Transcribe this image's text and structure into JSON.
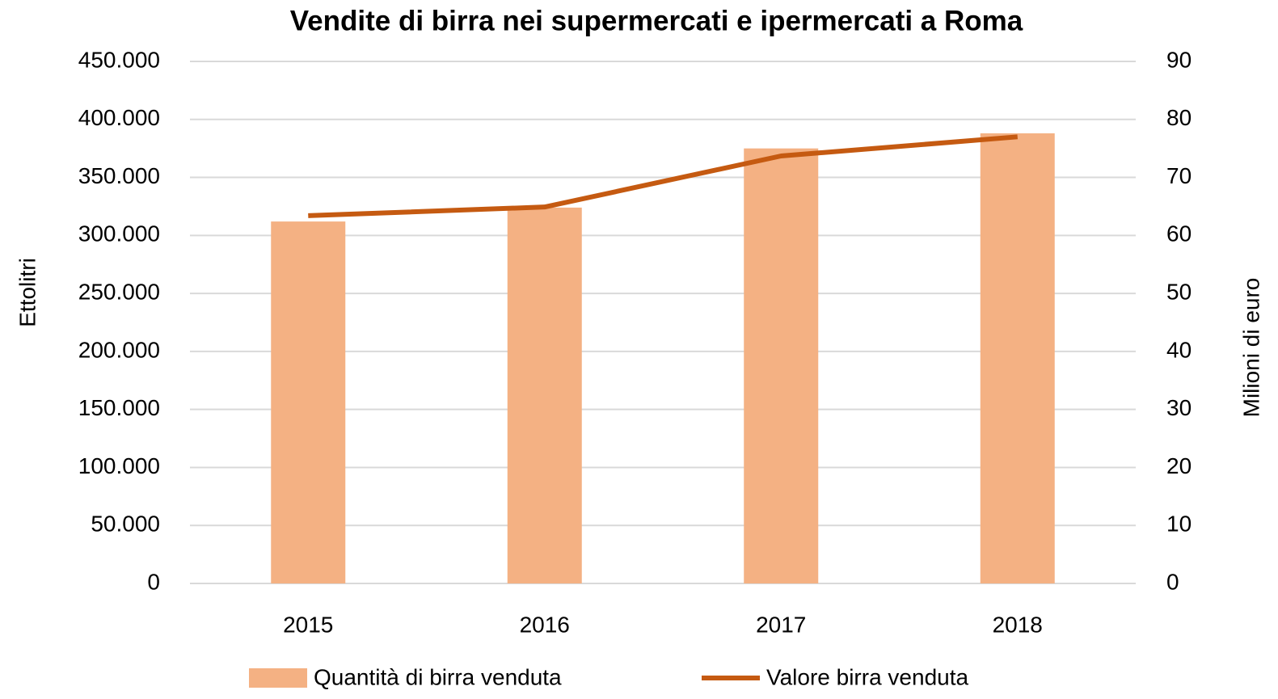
{
  "chart_data": {
    "type": "bar-line",
    "title": "Vendite di birra nei supermercati e ipermercati a Roma",
    "y_label": "Ettolitri",
    "y2_label": "Milioni di euro",
    "categories": [
      "2015",
      "2016",
      "2017",
      "2018"
    ],
    "series": [
      {
        "name": "Quantità di birra venduta",
        "type": "bar",
        "color": "#f4b183",
        "values": [
          312000,
          324000,
          375000,
          388000
        ]
      },
      {
        "name": "Valore birra venduta",
        "type": "line",
        "axis": "y2",
        "color": "#c55a11",
        "values": [
          63.4,
          64.9,
          73.7,
          77.0
        ]
      }
    ],
    "ylim": [
      0,
      450000
    ],
    "yticks": [
      0,
      {
        "value": 50000,
        "label": "50.000"
      },
      {
        "value": 100000,
        "label": "100.000"
      },
      {
        "value": 150000,
        "label": "150.000"
      },
      {
        "value": 200000,
        "label": "200.000"
      },
      {
        "value": 250000,
        "label": "250.000"
      },
      {
        "value": 300000,
        "label": "300.000"
      },
      {
        "value": 350000,
        "label": "350.000"
      },
      {
        "value": 400000,
        "label": "400.000"
      },
      {
        "value": 450000,
        "label": "450.000"
      }
    ],
    "y2lim": [
      0,
      90
    ],
    "y2ticks": [
      0,
      10,
      20,
      30,
      40,
      50,
      60,
      70,
      80,
      90
    ],
    "grid": true,
    "legend": "bottom"
  }
}
